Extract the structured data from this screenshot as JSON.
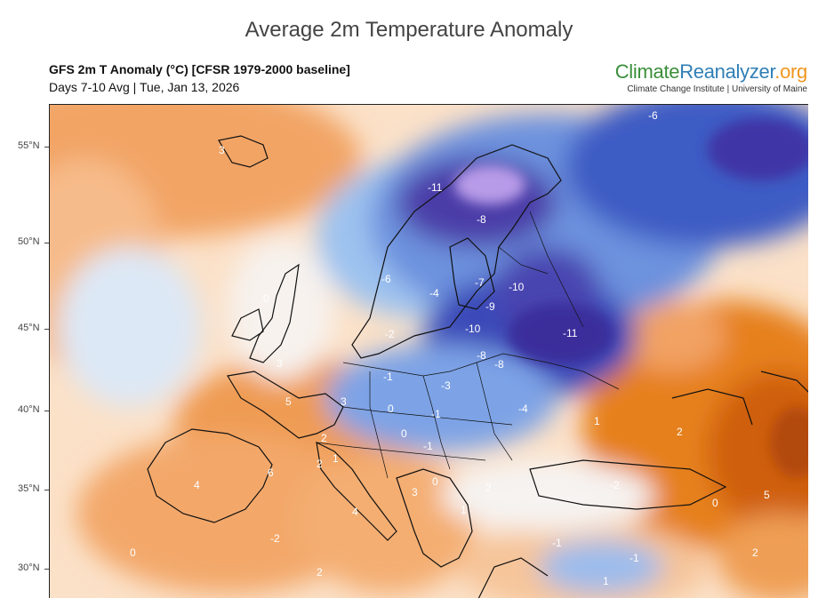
{
  "page_title": "Average 2m Temperature Anomaly",
  "header": {
    "title": "GFS 2m T Anomaly (°C) [CFSR 1979-2000 baseline]",
    "subtitle": "Days 7-10 Avg | Tue, Jan 13, 2026"
  },
  "brand": {
    "name_part1": "Climate",
    "name_part2": "Reanalyzer",
    "name_part3": ".org",
    "tagline": "Climate Change Institute | University of Maine"
  },
  "latitude_labels": [
    "55°N",
    "50°N",
    "45°N",
    "40°N",
    "35°N",
    "30°N"
  ],
  "anomaly_labels": [
    "3",
    "-11",
    "-8",
    "-6",
    "-4",
    "0",
    "-7",
    "-10",
    "-9",
    "-2",
    "-10",
    "-11",
    "-8",
    "-8",
    "3",
    "-1",
    "-3",
    "5",
    "3",
    "0",
    "-1",
    "-4",
    "0",
    "2",
    "-1",
    "1",
    "4",
    "6",
    "2",
    "3",
    "0",
    "-2",
    "2",
    "1",
    "4",
    "-1",
    "0",
    "-2",
    "-1",
    "1",
    "2",
    "0",
    "2",
    "5",
    "2",
    "1",
    "-6"
  ],
  "colors": {
    "deep_purple": "#4b3ea8",
    "blue": "#3a63c9",
    "light_blue": "#9fc3f0",
    "pale": "#dfeaf7",
    "orange": "#f3a263",
    "deep_orange": "#e2741f"
  }
}
